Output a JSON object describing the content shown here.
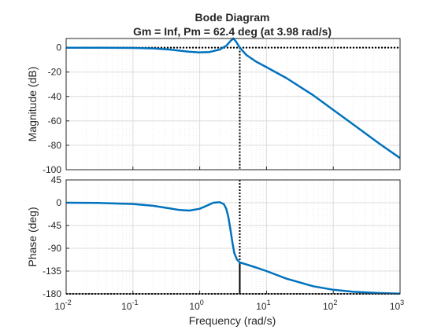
{
  "chart_data": {
    "type": "line",
    "title": "Bode Diagram",
    "subtitle": "Gm = Inf,  Pm = 62.4 deg (at 3.98 rad/s)",
    "xlabel": "Frequency  (rad/s)",
    "xscale": "log",
    "xlim": [
      0.01,
      1000
    ],
    "x_ticks": [
      {
        "base": "10",
        "exp": "-2"
      },
      {
        "base": "10",
        "exp": "-1"
      },
      {
        "base": "10",
        "exp": "0"
      },
      {
        "base": "10",
        "exp": "1"
      },
      {
        "base": "10",
        "exp": "2"
      },
      {
        "base": "10",
        "exp": "3"
      }
    ],
    "grid": true,
    "line_color": "#0072BD",
    "marker_color": "#000000",
    "crossover_frequency": 3.98,
    "phase_at_crossover": -117.6,
    "panels": [
      {
        "name": "magnitude",
        "ylabel": "Magnitude (dB)",
        "ylim": [
          -100,
          7.5
        ],
        "yticks": [
          0,
          -20,
          -40,
          -60,
          -80,
          -100
        ],
        "reference_line": 0,
        "series": [
          {
            "x": [
              0.01,
              0.03,
              0.1,
              0.2,
              0.35,
              0.5,
              0.7,
              1.0,
              1.4,
              2.0,
              2.5,
              2.9,
              3.2,
              3.5,
              3.98,
              5,
              7,
              10,
              20,
              50,
              100,
              200,
              500,
              1000
            ],
            "y": [
              0,
              0,
              -0.2,
              -0.6,
              -1.5,
              -2.5,
              -3.4,
              -3.9,
              -3.6,
              -1.5,
              1.5,
              5.5,
              7.5,
              5,
              0,
              -6,
              -11.5,
              -16,
              -25,
              -39,
              -51,
              -63,
              -79,
              -90.5
            ]
          }
        ]
      },
      {
        "name": "phase",
        "ylabel": "Phase (deg)",
        "ylim": [
          -180,
          45
        ],
        "yticks": [
          45,
          0,
          -45,
          -90,
          -135,
          -180
        ],
        "reference_line": -180,
        "series": [
          {
            "x": [
              0.01,
              0.03,
              0.1,
              0.2,
              0.35,
              0.5,
              0.7,
              1.0,
              1.3,
              1.6,
              2.0,
              2.3,
              2.5,
              2.7,
              2.9,
              3.1,
              3.3,
              3.6,
              3.98,
              5,
              7,
              10,
              20,
              50,
              100,
              200,
              500,
              1000
            ],
            "y": [
              0,
              -0.5,
              -2.5,
              -6,
              -11,
              -14.5,
              -15.5,
              -12,
              -5.5,
              0,
              1,
              -3,
              -12,
              -30,
              -55,
              -80,
              -100,
              -112,
              -118,
              -122,
              -128,
              -135,
              -150,
              -165,
              -172,
              -176,
              -178.5,
              -179.5
            ]
          }
        ]
      }
    ]
  }
}
